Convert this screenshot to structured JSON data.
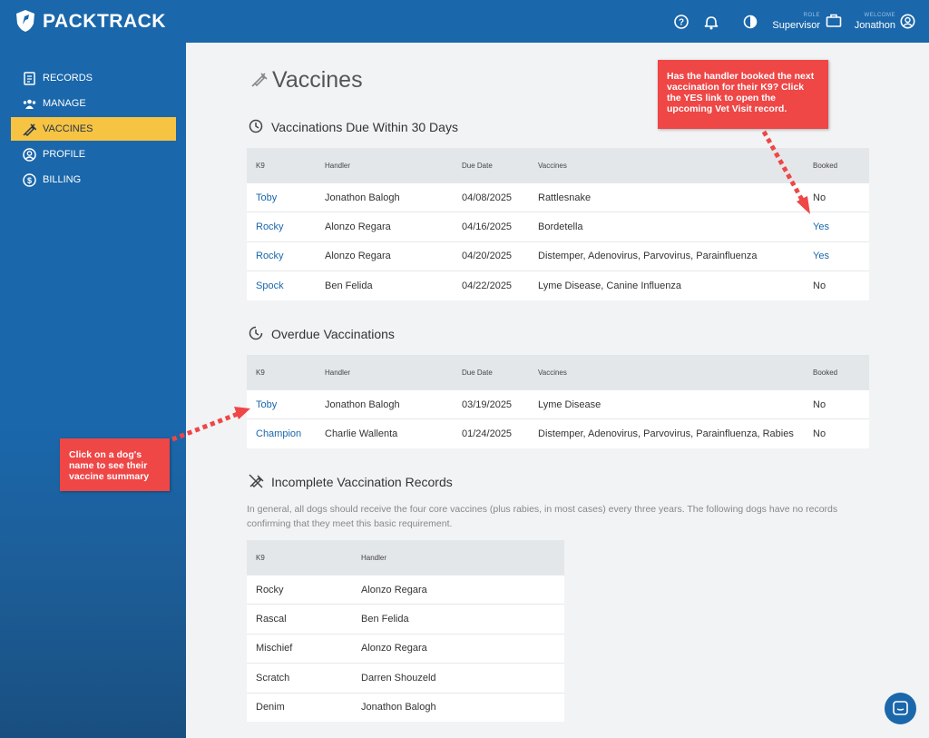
{
  "header": {
    "brand": "PACKTRACK",
    "role_label": "ROLE",
    "role": "Supervisor",
    "welcome_label": "WELCOME",
    "user": "Jonathon"
  },
  "sidebar": {
    "items": [
      "RECORDS",
      "MANAGE",
      "VACCINES",
      "PROFILE",
      "BILLING"
    ],
    "active": 2
  },
  "page": {
    "title": "Vaccines"
  },
  "due": {
    "heading": "Vaccinations Due Within 30 Days",
    "columns": [
      "K9",
      "Handler",
      "Due Date",
      "Vaccines",
      "Booked"
    ],
    "rows": [
      [
        "Toby",
        "Jonathon Balogh",
        "04/08/2025",
        "Rattlesnake",
        "No"
      ],
      [
        "Rocky",
        "Alonzo Regara",
        "04/16/2025",
        "Bordetella",
        "Yes"
      ],
      [
        "Rocky",
        "Alonzo Regara",
        "04/20/2025",
        "Distemper, Adenovirus, Parvovirus, Parainfluenza",
        "Yes"
      ],
      [
        "Spock",
        "Ben Felida",
        "04/22/2025",
        "Lyme Disease, Canine Influenza",
        "No"
      ]
    ]
  },
  "overdue": {
    "heading": "Overdue Vaccinations",
    "columns": [
      "K9",
      "Handler",
      "Due Date",
      "Vaccines",
      "Booked"
    ],
    "rows": [
      [
        "Toby",
        "Jonathon Balogh",
        "03/19/2025",
        "Lyme Disease",
        "No"
      ],
      [
        "Champion",
        "Charlie Wallenta",
        "01/24/2025",
        "Distemper, Adenovirus, Parvovirus, Parainfluenza, Rabies",
        "No"
      ]
    ]
  },
  "incomplete": {
    "heading": "Incomplete Vaccination Records",
    "description": "In general, all dogs should receive the four core vaccines (plus rabies, in most cases) every three years. The following dogs have no records confirming that they meet this basic requirement.",
    "columns": [
      "K9",
      "Handler"
    ],
    "rows": [
      [
        "Rocky",
        "Alonzo Regara"
      ],
      [
        "Rascal",
        "Ben Felida"
      ],
      [
        "Mischief",
        "Alonzo Regara"
      ],
      [
        "Scratch",
        "Darren Shouzeld"
      ],
      [
        "Denim",
        "Jonathon Balogh"
      ]
    ]
  },
  "callouts": [
    "Has the handler booked the next vaccination for their K9? Click the YES link to open the upcoming Vet Visit record.",
    "Click on a dog's name to see their vaccine summary"
  ]
}
